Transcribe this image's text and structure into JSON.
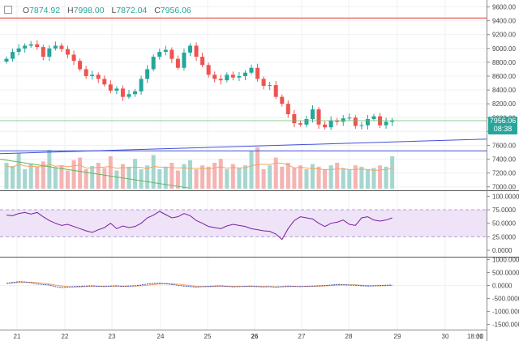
{
  "ohlc_legend": {
    "open_label": "O",
    "open_value": "7874.92",
    "high_label": "H",
    "high_value": "7998.00",
    "low_label": "L",
    "low_value": "7872.04",
    "close_label": "C",
    "close_value": "7956.06"
  },
  "price_axis": {
    "ticks": [
      "9600.00",
      "9400.00",
      "9200.00",
      "9000.00",
      "8800.00",
      "8600.00",
      "8400.00",
      "8200.00",
      "8000.00",
      "7800.00",
      "7600.00",
      "7400.00",
      "7200.00",
      "7000.00"
    ],
    "last_price_badge": "7956.06",
    "countdown_badge": "08:38"
  },
  "rsi_axis": {
    "ticks": [
      "100.0000",
      "75.0000",
      "50.0000",
      "25.0000",
      "0.0000"
    ]
  },
  "osc_axis": {
    "ticks": [
      "1000.0000",
      "500.0000",
      "0.0000",
      "-500.0000",
      "-1000.0000",
      "-1500.0000"
    ]
  },
  "time_axis": {
    "ticks": [
      "21",
      "22",
      "23",
      "24",
      "25",
      "26",
      "27",
      "28",
      "29",
      "30",
      "31",
      "18:00"
    ]
  },
  "colors": {
    "up": "#26a69a",
    "down": "#ef5350",
    "rsi": "#7b1fa2",
    "rsi_band": "#efe3f7",
    "trend_blue": "#3f51d6",
    "trend_green": "#5cb85c",
    "horizontal_red": "#e53935",
    "horizontal_green": "#66bb6a"
  },
  "chart_data": [
    {
      "type": "candlestick",
      "title": "",
      "x_labels": [
        "21",
        "22",
        "23",
        "24",
        "25",
        "26",
        "27",
        "28",
        "29",
        "30",
        "31"
      ],
      "ylim": [
        6950,
        9700
      ],
      "close_series": [
        8850,
        8950,
        9000,
        9040,
        9060,
        9020,
        8880,
        9000,
        9040,
        8990,
        8910,
        8820,
        8700,
        8600,
        8620,
        8560,
        8480,
        8390,
        8420,
        8300,
        8340,
        8380,
        8560,
        8700,
        8880,
        8950,
        8980,
        8850,
        8720,
        8940,
        9040,
        8880,
        8760,
        8620,
        8560,
        8540,
        8620,
        8580,
        8600,
        8650,
        8720,
        8560,
        8460,
        8470,
        8300,
        8200,
        8050,
        7920,
        7900,
        7980,
        8120,
        7900,
        7860,
        7960,
        7940,
        7990,
        8000,
        7880,
        7890,
        7980,
        8020,
        7890,
        7940,
        7960
      ],
      "last_price": 7956.06,
      "horizontal_lines": [
        9440,
        7956,
        7520
      ],
      "trendlines": [
        {
          "from": [
            0,
            7480
          ],
          "to": [
            63,
            7690
          ],
          "color": "trend_blue"
        },
        {
          "from": [
            0,
            7400
          ],
          "to": [
            30,
            6980
          ],
          "color": "trend_green"
        }
      ],
      "volume": [
        40,
        35,
        55,
        30,
        38,
        34,
        42,
        60,
        33,
        36,
        28,
        44,
        48,
        30,
        35,
        40,
        32,
        50,
        28,
        38,
        34,
        46,
        30,
        36,
        52,
        30,
        34,
        40,
        28,
        38,
        44,
        30,
        36,
        34,
        40,
        46,
        30,
        38,
        32,
        36,
        58,
        64,
        30,
        36,
        48,
        34,
        40,
        32,
        36,
        30,
        38,
        34,
        30,
        36,
        40,
        32,
        30,
        36,
        34,
        30,
        32,
        36,
        34,
        50
      ]
    },
    {
      "type": "line",
      "title": "",
      "series_values": [
        65,
        64,
        68,
        70,
        67,
        70,
        62,
        55,
        50,
        46,
        48,
        44,
        40,
        36,
        33,
        38,
        42,
        50,
        40,
        45,
        42,
        44,
        50,
        60,
        65,
        72,
        66,
        60,
        62,
        68,
        64,
        55,
        50,
        44,
        42,
        40,
        45,
        48,
        46,
        44,
        40,
        38,
        36,
        35,
        30,
        20,
        40,
        55,
        62,
        60,
        58,
        50,
        44,
        50,
        52,
        56,
        48,
        46,
        60,
        62,
        56,
        54,
        56,
        60
      ],
      "ylim": [
        0,
        100
      ],
      "band": [
        25,
        75
      ]
    },
    {
      "type": "line",
      "title": "",
      "series_values": [
        80,
        120,
        150,
        140,
        110,
        60,
        40,
        20,
        -40,
        -80,
        -60,
        -40,
        -30,
        -20,
        -10,
        -30,
        -40,
        -20,
        -10,
        -30,
        -20,
        -10,
        20,
        60,
        80,
        90,
        70,
        40,
        10,
        -20,
        -40,
        -60,
        -40,
        -30,
        -20,
        -10,
        -30,
        -50,
        -40,
        -30,
        -20,
        -40,
        -50,
        -40,
        -60,
        -40,
        -20,
        -30,
        -40,
        -30,
        -20,
        -10,
        0,
        20,
        40,
        30,
        20,
        10,
        -10,
        -20,
        -10,
        0,
        10,
        20
      ],
      "ylim": [
        -1700,
        1050
      ]
    }
  ]
}
